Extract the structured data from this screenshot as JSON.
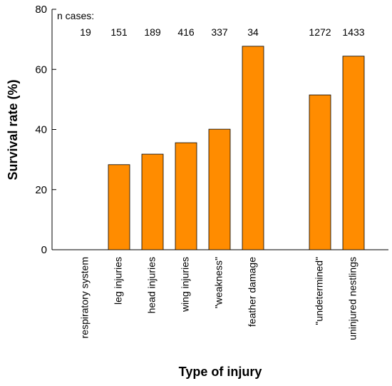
{
  "chart_data": {
    "type": "bar",
    "xlabel": "Type of injury",
    "ylabel": "Survival rate (%)",
    "categories": [
      "respiratory system",
      "leg injuries",
      "head injuries",
      "wing injuries",
      "\"weakness\"",
      "feather damage",
      null,
      "\"undetermined\"",
      "uninjured nestlings"
    ],
    "values": [
      0,
      28.3,
      31.8,
      35.6,
      40.1,
      67.7,
      null,
      51.5,
      64.4
    ],
    "annotation_title": "n  cases:",
    "n_cases": [
      19,
      151,
      189,
      416,
      337,
      34,
      null,
      1272,
      1433
    ],
    "color": "#ff8c00",
    "ylim": [
      0,
      80
    ],
    "yticks": [
      0,
      20,
      40,
      60,
      80
    ]
  }
}
